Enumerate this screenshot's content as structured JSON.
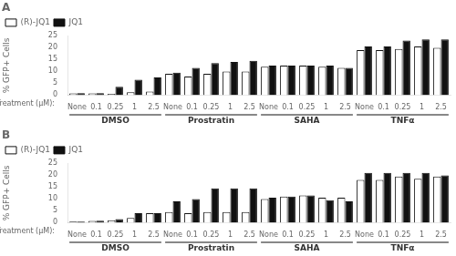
{
  "chart_data": [
    {
      "type": "bar",
      "title": "A",
      "x_label": "Treatment (μM):",
      "y_label": "% GFP+ Cells",
      "categories": [
        "None",
        "0.1",
        "0.25",
        "1",
        "2.5",
        "None",
        "0.1",
        "0.25",
        "1",
        "2.5",
        "None",
        "0.1",
        "0.25",
        "1",
        "2.5",
        "None",
        "0.1",
        "0.25",
        "1",
        "2.5"
      ],
      "groups": [
        "DMSO",
        "Prostratin",
        "SAHA",
        "TNFα"
      ],
      "series": [
        {
          "name": "(R)-JQ1",
          "color": "#ffffff",
          "values": [
            0.7,
            0.7,
            0.5,
            1.2,
            1.5,
            9.0,
            7.8,
            9.0,
            10.0,
            10.0,
            12.0,
            12.5,
            12.5,
            12.0,
            11.5,
            19.0,
            19.0,
            19.5,
            20.5,
            20.0
          ]
        },
        {
          "name": "JQ1",
          "color": "#111111",
          "values": [
            0.8,
            0.8,
            3.5,
            6.5,
            7.5,
            9.5,
            11.5,
            13.5,
            14.0,
            14.5,
            12.5,
            12.5,
            12.5,
            12.5,
            11.5,
            20.5,
            20.5,
            23.0,
            23.5,
            23.5
          ]
        }
      ],
      "edge_color": "#111111",
      "ylim": [
        0,
        25
      ],
      "yticks": [
        0,
        5,
        10,
        15,
        20,
        25
      ],
      "grid": false,
      "legend": "upper left"
    },
    {
      "type": "bar",
      "title": "B",
      "x_label": "Treatment (μM):",
      "y_label": "% GFP+ Cells",
      "categories": [
        "None",
        "0.1",
        "0.25",
        "1",
        "2.5",
        "None",
        "0.1",
        "0.25",
        "1",
        "2.5",
        "None",
        "0.1",
        "0.25",
        "1",
        "2.5",
        "None",
        "0.1",
        "0.25",
        "1",
        "2.5"
      ],
      "groups": [
        "DMSO",
        "Prostratin",
        "SAHA",
        "TNFα"
      ],
      "series": [
        {
          "name": "(R)-JQ1",
          "color": "#ffffff",
          "values": [
            0.4,
            0.7,
            1.0,
            2.0,
            4.0,
            4.5,
            4.0,
            4.5,
            4.5,
            4.5,
            10.0,
            11.0,
            11.5,
            10.5,
            10.5,
            18.0,
            18.0,
            19.5,
            18.5,
            19.5
          ]
        },
        {
          "name": "JQ1",
          "color": "#111111",
          "values": [
            0.4,
            0.8,
            1.5,
            4.0,
            4.0,
            9.0,
            10.0,
            14.5,
            14.5,
            14.5,
            10.5,
            11.0,
            11.5,
            9.5,
            9.0,
            21.0,
            21.0,
            21.0,
            21.0,
            20.0
          ]
        }
      ],
      "edge_color": "#111111",
      "ylim": [
        0,
        25
      ],
      "yticks": [
        0,
        5,
        10,
        15,
        20,
        25
      ],
      "grid": false,
      "legend": "upper left"
    }
  ]
}
